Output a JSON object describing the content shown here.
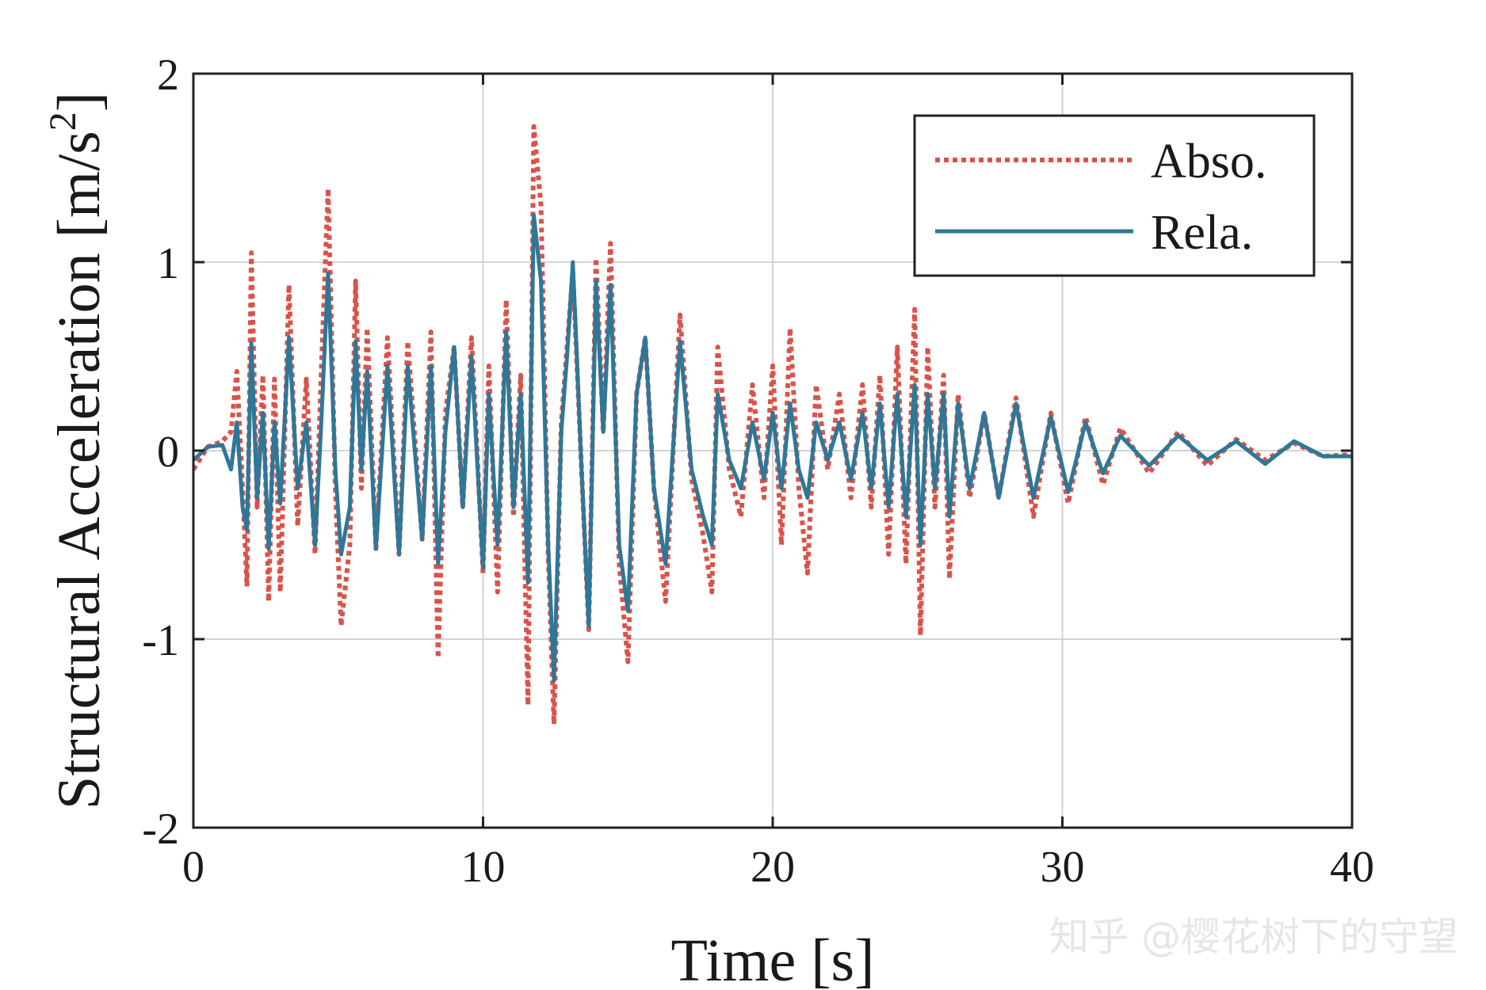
{
  "watermark": "知乎 @樱花树下的守望",
  "chart_data": {
    "type": "line",
    "xlabel": "Time [s]",
    "ylabel_main": "Structural Acceleration [m/s",
    "ylabel_sup": "2",
    "ylabel_close": "]",
    "xlim": [
      0,
      40
    ],
    "ylim": [
      -2,
      2
    ],
    "xticks": [
      0,
      10,
      20,
      30,
      40
    ],
    "yticks": [
      -2,
      -1,
      0,
      1,
      2
    ],
    "xtick_labels": [
      "0",
      "10",
      "20",
      "30",
      "40"
    ],
    "ytick_labels": [
      "-2",
      "-1",
      "0",
      "1",
      "2"
    ],
    "grid": true,
    "legend_position": "top-right",
    "series": [
      {
        "name": "Abso.",
        "style": "dotted",
        "color": "#d9534a",
        "points": [
          [
            0,
            -0.1
          ],
          [
            0.5,
            0.02
          ],
          [
            1.0,
            0.05
          ],
          [
            1.3,
            0.1
          ],
          [
            1.5,
            0.42
          ],
          [
            1.7,
            -0.2
          ],
          [
            1.85,
            -0.72
          ],
          [
            2.0,
            1.05
          ],
          [
            2.2,
            -0.3
          ],
          [
            2.4,
            0.4
          ],
          [
            2.6,
            -0.8
          ],
          [
            2.8,
            0.38
          ],
          [
            3.0,
            -0.75
          ],
          [
            3.3,
            0.88
          ],
          [
            3.6,
            -0.4
          ],
          [
            3.9,
            0.38
          ],
          [
            4.2,
            -0.55
          ],
          [
            4.4,
            0.35
          ],
          [
            4.65,
            1.39
          ],
          [
            4.9,
            -0.2
          ],
          [
            5.1,
            -0.93
          ],
          [
            5.4,
            -0.5
          ],
          [
            5.6,
            0.9
          ],
          [
            5.8,
            -0.2
          ],
          [
            6.0,
            0.65
          ],
          [
            6.3,
            -0.52
          ],
          [
            6.7,
            0.6
          ],
          [
            7.1,
            -0.55
          ],
          [
            7.4,
            0.58
          ],
          [
            7.9,
            -0.47
          ],
          [
            8.2,
            0.63
          ],
          [
            8.45,
            -1.1
          ],
          [
            8.7,
            0.2
          ],
          [
            9.0,
            0.55
          ],
          [
            9.3,
            -0.3
          ],
          [
            9.6,
            0.6
          ],
          [
            10.0,
            -0.65
          ],
          [
            10.2,
            0.45
          ],
          [
            10.5,
            -0.75
          ],
          [
            10.8,
            0.8
          ],
          [
            11.05,
            -0.35
          ],
          [
            11.3,
            0.4
          ],
          [
            11.55,
            -1.35
          ],
          [
            11.75,
            1.72
          ],
          [
            12.0,
            1.3
          ],
          [
            12.25,
            -0.55
          ],
          [
            12.45,
            -1.45
          ],
          [
            12.7,
            0.15
          ],
          [
            12.9,
            0.55
          ],
          [
            13.1,
            0.95
          ],
          [
            13.4,
            -0.1
          ],
          [
            13.65,
            -0.95
          ],
          [
            13.9,
            1.02
          ],
          [
            14.15,
            0.1
          ],
          [
            14.4,
            1.1
          ],
          [
            14.7,
            -0.6
          ],
          [
            15.0,
            -1.12
          ],
          [
            15.3,
            0.3
          ],
          [
            15.6,
            0.6
          ],
          [
            15.9,
            -0.2
          ],
          [
            16.3,
            -0.8
          ],
          [
            16.8,
            0.72
          ],
          [
            17.2,
            -0.15
          ],
          [
            17.6,
            -0.45
          ],
          [
            17.9,
            -0.75
          ],
          [
            18.1,
            0.55
          ],
          [
            18.5,
            -0.1
          ],
          [
            18.9,
            -0.35
          ],
          [
            19.3,
            0.35
          ],
          [
            19.7,
            -0.25
          ],
          [
            20.0,
            0.45
          ],
          [
            20.3,
            -0.5
          ],
          [
            20.6,
            0.65
          ],
          [
            20.9,
            -0.2
          ],
          [
            21.2,
            -0.65
          ],
          [
            21.5,
            0.35
          ],
          [
            21.9,
            -0.1
          ],
          [
            22.3,
            0.3
          ],
          [
            22.7,
            -0.25
          ],
          [
            23.1,
            0.35
          ],
          [
            23.4,
            -0.3
          ],
          [
            23.7,
            0.4
          ],
          [
            24.0,
            -0.55
          ],
          [
            24.3,
            0.55
          ],
          [
            24.6,
            -0.6
          ],
          [
            24.9,
            0.75
          ],
          [
            25.1,
            -0.98
          ],
          [
            25.35,
            0.55
          ],
          [
            25.6,
            -0.3
          ],
          [
            25.9,
            0.4
          ],
          [
            26.1,
            -0.68
          ],
          [
            26.4,
            0.3
          ],
          [
            26.8,
            -0.25
          ],
          [
            27.3,
            0.2
          ],
          [
            27.8,
            -0.25
          ],
          [
            28.4,
            0.28
          ],
          [
            29.0,
            -0.35
          ],
          [
            29.6,
            0.2
          ],
          [
            30.2,
            -0.28
          ],
          [
            30.8,
            0.18
          ],
          [
            31.4,
            -0.18
          ],
          [
            32.0,
            0.12
          ],
          [
            33.0,
            -0.12
          ],
          [
            34.0,
            0.1
          ],
          [
            35.0,
            -0.08
          ],
          [
            36.0,
            0.06
          ],
          [
            37.0,
            -0.05
          ],
          [
            38.0,
            0.04
          ],
          [
            39.0,
            -0.03
          ],
          [
            40.0,
            -0.02
          ]
        ]
      },
      {
        "name": "Rela.",
        "style": "solid",
        "color": "#2f7797",
        "points": [
          [
            0,
            -0.05
          ],
          [
            0.5,
            0.02
          ],
          [
            1.0,
            0.03
          ],
          [
            1.3,
            -0.1
          ],
          [
            1.5,
            0.15
          ],
          [
            1.7,
            -0.3
          ],
          [
            1.85,
            -0.42
          ],
          [
            2.0,
            0.57
          ],
          [
            2.2,
            -0.25
          ],
          [
            2.4,
            0.2
          ],
          [
            2.6,
            -0.52
          ],
          [
            2.8,
            0.15
          ],
          [
            3.0,
            -0.28
          ],
          [
            3.3,
            0.6
          ],
          [
            3.6,
            -0.2
          ],
          [
            3.9,
            0.15
          ],
          [
            4.2,
            -0.5
          ],
          [
            4.4,
            0.1
          ],
          [
            4.65,
            0.94
          ],
          [
            4.9,
            -0.1
          ],
          [
            5.1,
            -0.55
          ],
          [
            5.4,
            -0.3
          ],
          [
            5.6,
            0.58
          ],
          [
            5.8,
            -0.1
          ],
          [
            6.0,
            0.42
          ],
          [
            6.3,
            -0.52
          ],
          [
            6.7,
            0.45
          ],
          [
            7.1,
            -0.55
          ],
          [
            7.4,
            0.45
          ],
          [
            7.9,
            -0.47
          ],
          [
            8.2,
            0.45
          ],
          [
            8.45,
            -0.6
          ],
          [
            8.7,
            0.1
          ],
          [
            9.0,
            0.55
          ],
          [
            9.3,
            -0.3
          ],
          [
            9.6,
            0.5
          ],
          [
            10.0,
            -0.62
          ],
          [
            10.2,
            0.3
          ],
          [
            10.5,
            -0.5
          ],
          [
            10.8,
            0.63
          ],
          [
            11.05,
            -0.3
          ],
          [
            11.3,
            0.3
          ],
          [
            11.55,
            -0.7
          ],
          [
            11.75,
            1.25
          ],
          [
            12.0,
            0.9
          ],
          [
            12.25,
            -0.5
          ],
          [
            12.45,
            -1.22
          ],
          [
            12.7,
            0.1
          ],
          [
            12.9,
            0.5
          ],
          [
            13.1,
            1.0
          ],
          [
            13.4,
            -0.1
          ],
          [
            13.65,
            -0.93
          ],
          [
            13.9,
            0.9
          ],
          [
            14.15,
            0.1
          ],
          [
            14.4,
            0.88
          ],
          [
            14.7,
            -0.5
          ],
          [
            15.0,
            -0.85
          ],
          [
            15.3,
            0.3
          ],
          [
            15.6,
            0.6
          ],
          [
            15.9,
            -0.2
          ],
          [
            16.3,
            -0.6
          ],
          [
            16.8,
            0.58
          ],
          [
            17.2,
            -0.1
          ],
          [
            17.6,
            -0.35
          ],
          [
            17.9,
            -0.5
          ],
          [
            18.1,
            0.3
          ],
          [
            18.5,
            -0.05
          ],
          [
            18.9,
            -0.2
          ],
          [
            19.3,
            0.15
          ],
          [
            19.7,
            -0.15
          ],
          [
            20.0,
            0.2
          ],
          [
            20.3,
            -0.2
          ],
          [
            20.6,
            0.25
          ],
          [
            20.9,
            -0.1
          ],
          [
            21.2,
            -0.25
          ],
          [
            21.5,
            0.15
          ],
          [
            21.9,
            -0.05
          ],
          [
            22.3,
            0.15
          ],
          [
            22.7,
            -0.15
          ],
          [
            23.1,
            0.2
          ],
          [
            23.4,
            -0.2
          ],
          [
            23.7,
            0.25
          ],
          [
            24.0,
            -0.3
          ],
          [
            24.3,
            0.3
          ],
          [
            24.6,
            -0.35
          ],
          [
            24.9,
            0.35
          ],
          [
            25.1,
            -0.5
          ],
          [
            25.35,
            0.3
          ],
          [
            25.6,
            -0.2
          ],
          [
            25.9,
            0.3
          ],
          [
            26.1,
            -0.35
          ],
          [
            26.4,
            0.25
          ],
          [
            26.8,
            -0.2
          ],
          [
            27.3,
            0.2
          ],
          [
            27.8,
            -0.25
          ],
          [
            28.4,
            0.25
          ],
          [
            29.0,
            -0.25
          ],
          [
            29.6,
            0.18
          ],
          [
            30.2,
            -0.22
          ],
          [
            30.8,
            0.15
          ],
          [
            31.4,
            -0.12
          ],
          [
            32.0,
            0.08
          ],
          [
            33.0,
            -0.08
          ],
          [
            34.0,
            0.08
          ],
          [
            35.0,
            -0.05
          ],
          [
            36.0,
            0.05
          ],
          [
            37.0,
            -0.07
          ],
          [
            38.0,
            0.05
          ],
          [
            39.0,
            -0.03
          ],
          [
            40.0,
            -0.03
          ]
        ]
      }
    ]
  }
}
